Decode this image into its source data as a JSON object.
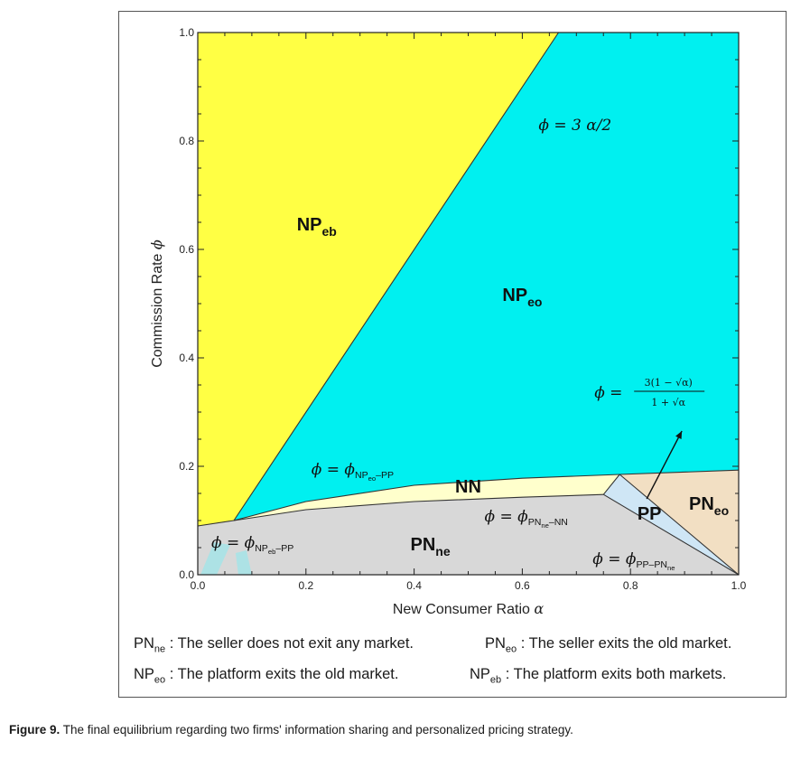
{
  "chart_data": {
    "type": "area",
    "xlabel": "New Consumer Ratio",
    "xlabel_symbol": "α",
    "ylabel": "Commission Rate",
    "ylabel_symbol": "ϕ",
    "xlim": [
      0,
      1
    ],
    "ylim": [
      0,
      1
    ],
    "x_ticks": [
      "0.0",
      "0.2",
      "0.4",
      "0.6",
      "0.8",
      "1.0"
    ],
    "y_ticks": [
      "0.0",
      "0.2",
      "0.4",
      "0.6",
      "0.8",
      "1.0"
    ],
    "colors": {
      "NP_eb": "#ffff44",
      "NP_eo": "#00f0f0",
      "NN": "#ffffcc",
      "PN_ne": "#d8d8d8",
      "PP": "#cfe6f5",
      "PN_eo": "#f2dfc3"
    },
    "regions": [
      {
        "name": "NP",
        "sub": "eb",
        "label_x": 0.22,
        "label_y": 0.635
      },
      {
        "name": "NP",
        "sub": "eo",
        "label_x": 0.6,
        "label_y": 0.505
      },
      {
        "name": "NN",
        "sub": "",
        "label_x": 0.5,
        "label_y": 0.152
      },
      {
        "name": "PN",
        "sub": "ne",
        "label_x": 0.43,
        "label_y": 0.045
      },
      {
        "name": "PP",
        "sub": "",
        "label_x": 0.835,
        "label_y": 0.102
      },
      {
        "name": "PN",
        "sub": "eo",
        "label_x": 0.945,
        "label_y": 0.12
      }
    ],
    "boundaries": {
      "phi_eq_3alpha_over_2": [
        [
          0.0667,
          0.1
        ],
        [
          0.667,
          1.0
        ]
      ],
      "NP_eb_PP": [
        [
          0.0,
          0.09
        ],
        [
          0.0667,
          0.1
        ]
      ],
      "NP_eo_PP": [
        [
          0.0667,
          0.1
        ],
        [
          0.2,
          0.135
        ],
        [
          0.4,
          0.165
        ],
        [
          0.6,
          0.178
        ],
        [
          0.78,
          0.185
        ],
        [
          1.0,
          0.193
        ]
      ],
      "PN_ne_NN": [
        [
          0.0667,
          0.1
        ],
        [
          0.2,
          0.12
        ],
        [
          0.4,
          0.135
        ],
        [
          0.6,
          0.143
        ],
        [
          0.75,
          0.148
        ]
      ],
      "PP_PN_ne": [
        [
          0.75,
          0.148
        ],
        [
          1.0,
          0.0
        ]
      ],
      "phi_curve": [
        [
          0.78,
          0.185
        ],
        [
          1.0,
          0.0
        ]
      ]
    },
    "annotations": {
      "slope_line": {
        "prefix": "ϕ",
        "text": "= 3 α/2",
        "x": 0.63,
        "y": 0.82
      },
      "np_eo_pp": {
        "prefix": "ϕ = ϕ",
        "sub": "NP",
        "subsub": "eo",
        "tail": "–PP",
        "x": 0.21,
        "y": 0.185
      },
      "pn_ne_nn": {
        "prefix": "ϕ = ϕ",
        "sub": "PN",
        "subsub": "ne",
        "tail": "–NN",
        "x": 0.53,
        "y": 0.098
      },
      "np_eb_pp": {
        "prefix": "ϕ = ϕ",
        "sub": "NP",
        "subsub": "eb",
        "tail": "–PP",
        "x": 0.025,
        "y": 0.05
      },
      "pp_pn_ne": {
        "prefix": "ϕ = ϕ",
        "sub": "PP–PN",
        "subsub": "ne",
        "tail": "",
        "x": 0.73,
        "y": 0.02
      },
      "formula": {
        "lhs": "ϕ =",
        "numerator": "3(1 − √α)",
        "denominator": "1 + √α",
        "x": 0.8,
        "y": 0.335
      }
    }
  },
  "legend": {
    "row1_left_name": "PN",
    "row1_left_sub": "ne",
    "row1_left_text": " : The seller does not exit any market.",
    "row1_right_name": "PN",
    "row1_right_sub": "eo",
    "row1_right_text": " : The seller exits the old market.",
    "row2_left_name": "NP",
    "row2_left_sub": "eo",
    "row2_left_text": " : The platform exits the old market.",
    "row2_right_name": "NP",
    "row2_right_sub": "eb",
    "row2_right_text": " : The platform exits both markets."
  },
  "caption": {
    "label": "Figure 9.",
    "text": " The final equilibrium regarding two firms' information sharing and personalized pricing strategy."
  }
}
